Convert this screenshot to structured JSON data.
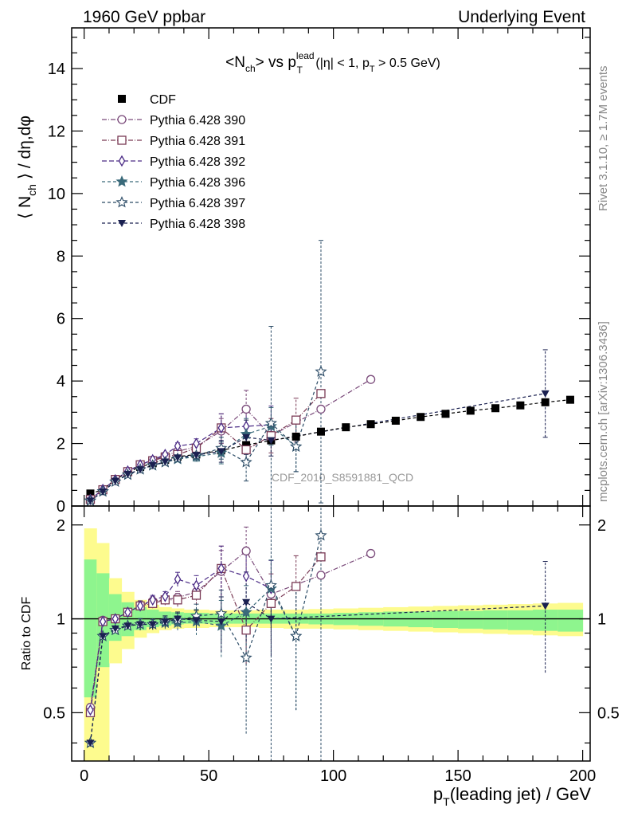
{
  "header": {
    "left": "1960 GeV ppbar",
    "right": "Underlying Event"
  },
  "side_labels": {
    "rivet": "Rivet 3.1.10, ≥ 1.7M events",
    "mcplots": "mcplots.cern.ch [arXiv:1306.3436]"
  },
  "chart_data": {
    "type": "scatter",
    "title": "<N_ch> vs p_T^lead (|η| < 1, p_T > 0.5 GeV)",
    "title_parts": {
      "pre": "<N",
      "sub1": "ch",
      "mid": "> vs p",
      "sup": "lead",
      "sub2": "T",
      "post": " (|η| < 1, p",
      "sub3": "T",
      "tail": " > 0.5 GeV)"
    },
    "watermark": "CDF_2010_S8591881_QCD",
    "xlabel": "p_T(leading jet) / GeV",
    "xlabel_parts": {
      "pre": "p",
      "sub": "T",
      "post": "(leading jet) / GeV"
    },
    "ylabel": "⟨ N_ch ⟩ / dη,dφ",
    "ylabel_parts": {
      "pre": "⟨ N",
      "sub": "ch",
      "post": " ⟩ / dη,dφ"
    },
    "ratio_ylabel": "Ratio to CDF",
    "xlim": [
      -5,
      203
    ],
    "ylim": [
      0,
      15.3
    ],
    "ratio_ylim": [
      0.35,
      2.3
    ],
    "x_ticks": [
      0,
      50,
      100,
      150,
      200
    ],
    "y_ticks": [
      0,
      2,
      4,
      6,
      8,
      10,
      12,
      14
    ],
    "ratio_ticks": [
      0.5,
      1,
      2
    ],
    "legend_position": "top-left",
    "reference": {
      "name": "CDF",
      "color": "#000000",
      "x": [
        2.5,
        7.5,
        12.5,
        17.5,
        22.5,
        27.5,
        32.5,
        37.5,
        45,
        55,
        65,
        75,
        85,
        95,
        105,
        115,
        125,
        135,
        145,
        155,
        165,
        175,
        185,
        195
      ],
      "y": [
        0.4,
        0.52,
        0.85,
        1.08,
        1.25,
        1.37,
        1.48,
        1.58,
        1.65,
        1.78,
        1.95,
        2.1,
        2.22,
        2.38,
        2.52,
        2.62,
        2.73,
        2.85,
        2.95,
        3.05,
        3.13,
        3.22,
        3.32,
        3.4
      ],
      "band_x": [
        0,
        5,
        10,
        15,
        20,
        25,
        30,
        35,
        40,
        50,
        60,
        70,
        80,
        90,
        100,
        110,
        120,
        130,
        140,
        150,
        160,
        170,
        180,
        190,
        200
      ],
      "stat_lo": [
        0.56,
        0.7,
        0.85,
        0.88,
        0.92,
        0.94,
        0.95,
        0.96,
        0.965,
        0.965,
        0.965,
        0.965,
        0.965,
        0.96,
        0.955,
        0.95,
        0.945,
        0.94,
        0.935,
        0.93,
        0.925,
        0.92,
        0.915,
        0.91
      ],
      "stat_hi": [
        1.55,
        1.4,
        1.2,
        1.13,
        1.09,
        1.07,
        1.055,
        1.05,
        1.045,
        1.04,
        1.04,
        1.04,
        1.04,
        1.04,
        1.045,
        1.05,
        1.055,
        1.055,
        1.06,
        1.06,
        1.065,
        1.065,
        1.07,
        1.07
      ],
      "tot_lo": [
        0.3,
        0.35,
        0.72,
        0.8,
        0.87,
        0.9,
        0.92,
        0.93,
        0.935,
        0.94,
        0.94,
        0.935,
        0.93,
        0.93,
        0.925,
        0.92,
        0.915,
        0.91,
        0.905,
        0.9,
        0.895,
        0.89,
        0.885,
        0.88
      ],
      "tot_hi": [
        1.95,
        1.75,
        1.35,
        1.22,
        1.15,
        1.11,
        1.09,
        1.08,
        1.07,
        1.065,
        1.065,
        1.07,
        1.07,
        1.075,
        1.08,
        1.085,
        1.09,
        1.095,
        1.1,
        1.105,
        1.11,
        1.115,
        1.12,
        1.125
      ],
      "stat_color": "#8ef58e",
      "tot_color": "#fdfb8e"
    },
    "series": [
      {
        "name": "Pythia 6.428 390",
        "marker": "circle-open",
        "color": "#7a4a7a",
        "dash": "6,2,1,2",
        "x": [
          2.5,
          7.5,
          12.5,
          17.5,
          22.5,
          27.5,
          32.5,
          37.5,
          45,
          55,
          65,
          75,
          95,
          115
        ],
        "y": [
          0.22,
          0.53,
          0.85,
          1.1,
          1.3,
          1.47,
          1.6,
          1.75,
          1.9,
          2.4,
          3.1,
          2.25,
          3.1,
          4.05
        ],
        "err": [
          0,
          0,
          0,
          0,
          0.05,
          0.05,
          0.05,
          0.08,
          0.12,
          0.4,
          0.6,
          0,
          0,
          0
        ],
        "ratio": [
          0.52,
          0.99,
          1.0,
          1.05,
          1.1,
          1.14,
          1.15,
          1.17,
          1.22,
          1.42,
          1.65,
          1.2,
          1.38,
          1.62
        ]
      },
      {
        "name": "Pythia 6.428 391",
        "marker": "square-open",
        "color": "#7a3a55",
        "dash": "6,2,1,2",
        "x": [
          2.5,
          7.5,
          12.5,
          17.5,
          22.5,
          27.5,
          32.5,
          37.5,
          45,
          55,
          65,
          75,
          85,
          95
        ],
        "y": [
          0.21,
          0.52,
          0.85,
          1.1,
          1.32,
          1.45,
          1.57,
          1.65,
          1.85,
          2.5,
          1.8,
          2.25,
          2.75,
          3.6
        ],
        "err": [
          0,
          0,
          0,
          0,
          0.05,
          0.05,
          0.06,
          0.08,
          0.12,
          0.45,
          0.4,
          0.55,
          0.7,
          0
        ],
        "ratio": [
          0.5,
          0.98,
          1.0,
          1.05,
          1.1,
          1.12,
          1.15,
          1.15,
          1.19,
          1.45,
          0.92,
          1.12,
          1.27,
          1.58
        ]
      },
      {
        "name": "Pythia 6.428 392",
        "marker": "diamond-open",
        "color": "#4a2a85",
        "dash": "6,3",
        "x": [
          2.5,
          7.5,
          12.5,
          17.5,
          22.5,
          27.5,
          32.5,
          37.5,
          45,
          55,
          65,
          75
        ],
        "y": [
          0.21,
          0.53,
          0.84,
          1.12,
          1.32,
          1.48,
          1.65,
          1.92,
          2.0,
          2.5,
          2.55,
          2.6
        ],
        "err": [
          0,
          0,
          0,
          0,
          0.05,
          0.05,
          0.06,
          0.1,
          0.15,
          0.45,
          0.5,
          0.6
        ],
        "ratio": [
          0.51,
          0.98,
          1.0,
          1.05,
          1.1,
          1.15,
          1.18,
          1.34,
          1.28,
          1.45,
          1.37,
          1.25
        ]
      },
      {
        "name": "Pythia 6.428 396",
        "marker": "star-filled",
        "color": "#3a6a7a",
        "dash": "4,3",
        "x": [
          2.5,
          7.5,
          12.5,
          17.5,
          22.5,
          27.5,
          32.5,
          37.5,
          45,
          55,
          65,
          75,
          85
        ],
        "y": [
          0.17,
          0.46,
          0.78,
          1.0,
          1.17,
          1.3,
          1.4,
          1.5,
          1.58,
          1.7,
          2.3,
          2.55,
          1.9
        ],
        "err": [
          0,
          0,
          0,
          0,
          0.05,
          0.05,
          0.06,
          0.08,
          0.15,
          0.35,
          0.5,
          0.6,
          0.8
        ],
        "ratio": [
          0.4,
          0.88,
          0.92,
          0.95,
          0.96,
          0.96,
          0.97,
          0.97,
          0.98,
          0.95,
          1.05,
          1.25,
          0.88
        ]
      },
      {
        "name": "Pythia 6.428 397",
        "marker": "star-open",
        "color": "#2a4a65",
        "dash": "4,3",
        "x": [
          2.5,
          7.5,
          12.5,
          17.5,
          22.5,
          27.5,
          32.5,
          37.5,
          45,
          55,
          65,
          75,
          85,
          95
        ],
        "y": [
          0.17,
          0.47,
          0.78,
          1.0,
          1.17,
          1.3,
          1.4,
          1.52,
          1.62,
          1.85,
          1.4,
          2.65,
          1.9,
          4.3
        ],
        "err": [
          0,
          0,
          0,
          0,
          0.05,
          0.05,
          0.06,
          0.08,
          0.15,
          0.35,
          0.6,
          3.1,
          0.8,
          4.2
        ],
        "ratio": [
          0.4,
          0.88,
          0.92,
          0.95,
          0.96,
          0.96,
          0.98,
          0.99,
          1.02,
          1.04,
          0.75,
          1.28,
          0.88,
          1.85
        ]
      },
      {
        "name": "Pythia 6.428 398",
        "marker": "triangle-down",
        "color": "#1a2050",
        "dash": "4,3",
        "x": [
          2.5,
          7.5,
          12.5,
          17.5,
          22.5,
          27.5,
          32.5,
          37.5,
          45,
          55,
          65,
          75,
          185
        ],
        "y": [
          0.17,
          0.46,
          0.8,
          1.02,
          1.17,
          1.3,
          1.42,
          1.55,
          1.63,
          1.75,
          2.2,
          2.1,
          3.6
        ],
        "err": [
          0,
          0,
          0,
          0,
          0.05,
          0.05,
          0.06,
          0.08,
          0.12,
          0.35,
          0.55,
          0.5,
          1.4
        ],
        "ratio": [
          0.4,
          0.88,
          0.93,
          0.95,
          0.96,
          0.96,
          0.98,
          1.0,
          0.99,
          0.98,
          1.13,
          1.0,
          1.1
        ]
      }
    ]
  }
}
